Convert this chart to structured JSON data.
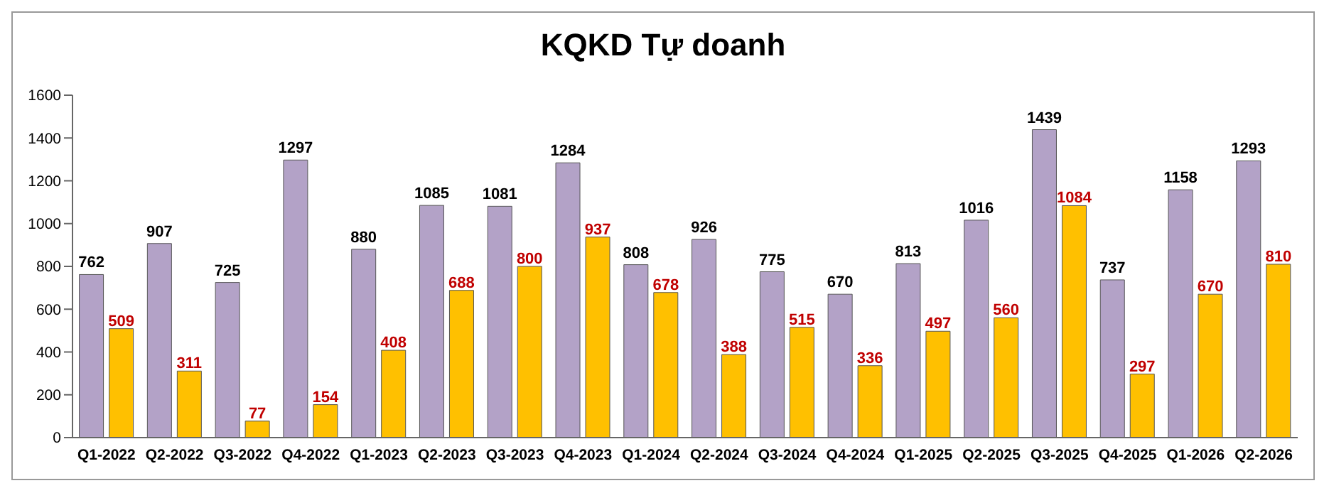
{
  "chart_data": {
    "type": "bar",
    "title": "KQKD Tự doanh",
    "categories": [
      "Q1-2022",
      "Q2-2022",
      "Q3-2022",
      "Q4-2022",
      "Q1-2023",
      "Q2-2023",
      "Q3-2023",
      "Q4-2023",
      "Q1-2024",
      "Q2-2024",
      "Q3-2024",
      "Q4-2024",
      "Q1-2025",
      "Q2-2025",
      "Q3-2025",
      "Q4-2025",
      "Q1-2026",
      "Q2-2026"
    ],
    "series": [
      {
        "color": "#b3a2c7",
        "values": [
          762,
          907,
          725,
          1297,
          880,
          1085,
          1081,
          1284,
          808,
          926,
          775,
          670,
          813,
          1016,
          1439,
          737,
          1158,
          1293
        ]
      },
      {
        "color": "#ffc000",
        "values": [
          509,
          311,
          77,
          154,
          408,
          688,
          800,
          937,
          678,
          388,
          515,
          336,
          497,
          560,
          1084,
          297,
          670,
          810
        ]
      }
    ],
    "ylim": [
      0,
      1600
    ],
    "yticks": [
      0,
      200,
      400,
      600,
      800,
      1000,
      1200,
      1400,
      1600
    ],
    "data_labels": true,
    "grid": false,
    "legend": false
  }
}
